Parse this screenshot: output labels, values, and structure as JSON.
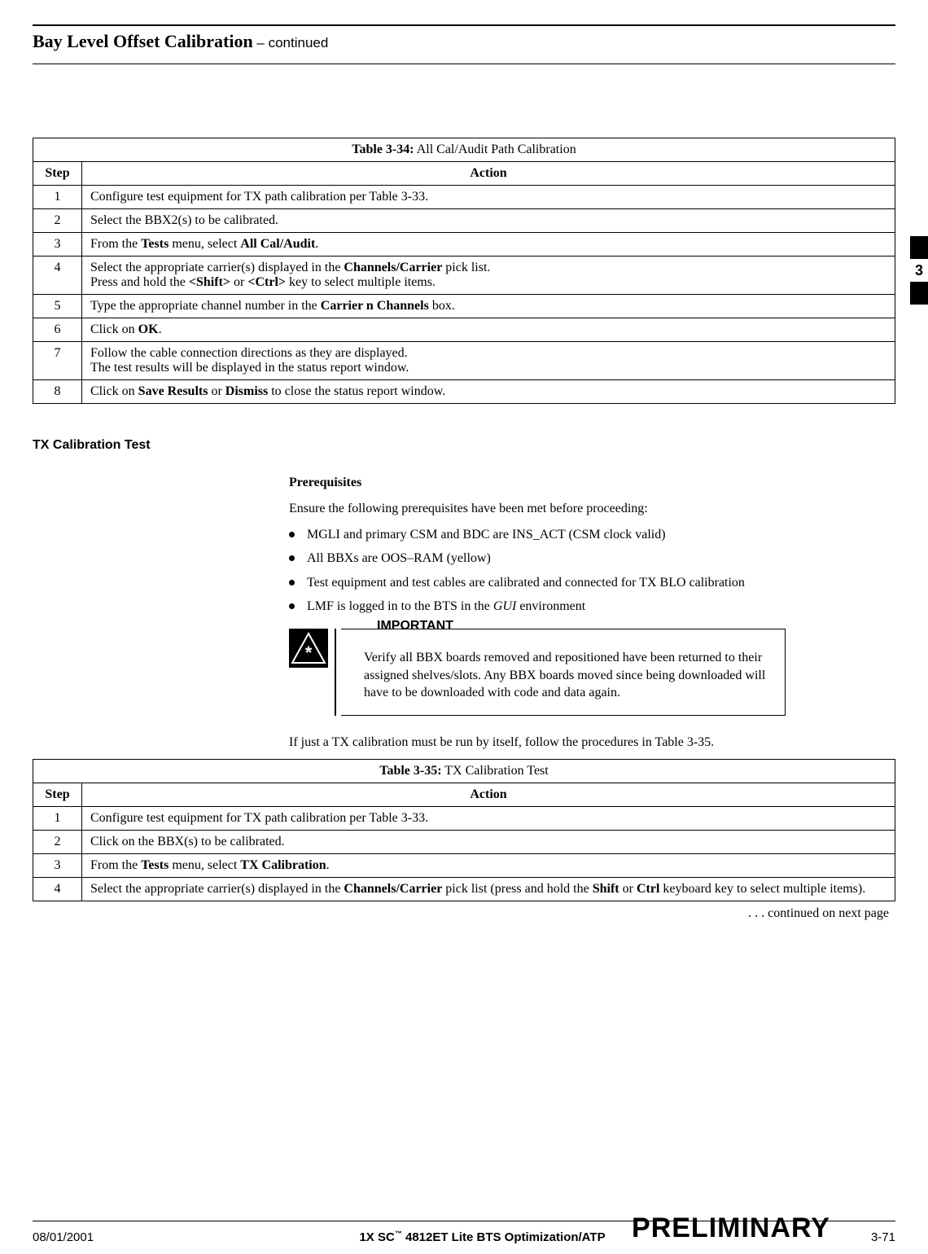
{
  "header": {
    "title_bold": "Bay Level Offset Calibration",
    "title_cont": " – continued"
  },
  "sidetab_num": "3",
  "table34": {
    "caption_bold": "Table 3-34:",
    "caption_rest": " All Cal/Audit Path Calibration",
    "col_step": "Step",
    "col_action": "Action",
    "rows": [
      {
        "n": "1",
        "a": "Configure test equipment for TX path calibration per Table 3-33."
      },
      {
        "n": "2",
        "a": "Select the BBX2(s) to be calibrated."
      },
      {
        "n": "3",
        "a_html": "From the <b>Tests</b> menu, select <b>All Cal/Audit</b>."
      },
      {
        "n": "4",
        "a_html": "Select the appropriate carrier(s) displayed in the <b>Channels/Carrier</b> pick list.<br>Press and hold the <b>&lt;Shift&gt;</b> or <b>&lt;Ctrl&gt;</b> key to select multiple items."
      },
      {
        "n": "5",
        "a_html": "Type the appropriate channel number in the <b>Carrier n Channels</b> box."
      },
      {
        "n": "6",
        "a_html": "Click on <b>OK</b>."
      },
      {
        "n": "7",
        "a_html": "Follow the cable connection directions as they are displayed.<br>The test results will be displayed in the status report window."
      },
      {
        "n": "8",
        "a_html": "Click on <b>Save Results</b> or <b>Dismiss</b> to close the status report window."
      }
    ]
  },
  "section_heading": "TX Calibration Test",
  "prereq_heading": "Prerequisites",
  "prereq_intro": "Ensure the following prerequisites have been met before proceeding:",
  "prereq_items": [
    "MGLI and primary CSM and BDC are INS_ACT (CSM clock valid)",
    "All BBXs are OOS–RAM (yellow)",
    "Test equipment and test cables are calibrated and connected for TX BLO calibration"
  ],
  "prereq_item_last_html": "LMF is logged in to the BTS in the <span class=\"italic\">GUI</span> environment",
  "important_label": "IMPORTANT",
  "important_text": "Verify all BBX boards removed and repositioned have been returned to their assigned shelves/slots. Any BBX boards moved since being downloaded will have to be downloaded with code and data again.",
  "after_important": "If just a TX calibration must be run by itself, follow the procedures in Table 3-35.",
  "table35": {
    "caption_bold": "Table 3-35:",
    "caption_rest": " TX Calibration Test",
    "col_step": "Step",
    "col_action": "Action",
    "rows": [
      {
        "n": "1",
        "a": "Configure test equipment for TX path calibration per Table 3-33."
      },
      {
        "n": "2",
        "a": "Click on the BBX(s) to be calibrated."
      },
      {
        "n": "3",
        "a_html": "From the <b>Tests</b> menu, select <b>TX Calibration</b>."
      },
      {
        "n": "4",
        "a_html": "Select the appropriate carrier(s) displayed in the <b>Channels/Carrier</b> pick list (press and hold the <b>Shift</b> or <b>Ctrl</b> keyboard key to select multiple items)."
      }
    ]
  },
  "continued_note": ". . . continued on next page",
  "footer": {
    "date": "08/01/2001",
    "center_html": "1X SC<span class=\"tm\">™</span> 4812ET Lite BTS Optimization/ATP",
    "right": "3-71",
    "preliminary": "PRELIMINARY"
  }
}
